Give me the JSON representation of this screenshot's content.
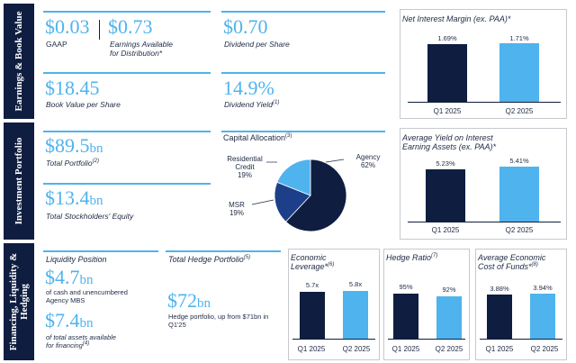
{
  "sections": {
    "earnings": "Earnings & Book Value",
    "portfolio": "Investment Portfolio",
    "financing": "Financing, Liquidity & Hedging"
  },
  "earnings": {
    "gaap_value": "$0.03",
    "gaap_label": "GAAP",
    "ead_value": "$0.73",
    "ead_label_line1": "Earnings Available",
    "ead_label_line2": "for Distribution*",
    "dividend_value": "$0.70",
    "dividend_label": "Dividend per Share",
    "bvps_value": "$18.45",
    "bvps_label": "Book Value per Share",
    "yield_value": "14.9%",
    "yield_label": "Dividend Yield",
    "yield_note": "(1)"
  },
  "nim_chart": {
    "title": "Net Interest Margin (ex. PAA)*",
    "chart_data": {
      "type": "bar",
      "categories": [
        "Q1 2025",
        "Q2 2025"
      ],
      "values": [
        1.69,
        1.71
      ],
      "labels": [
        "1.69%",
        "1.71%"
      ],
      "colors": [
        "#0f1d40",
        "#4fb3ee"
      ]
    }
  },
  "portfolio": {
    "total_value": "$89.5",
    "total_unit": "bn",
    "total_label": "Total Portfolio",
    "total_note": "(2)",
    "equity_value": "$13.4",
    "equity_unit": "bn",
    "equity_label": "Total Stockholders' Equity"
  },
  "allocation": {
    "title": "Capital Allocation",
    "note": "(3)",
    "chart_data": {
      "type": "pie",
      "slices": [
        {
          "label": "Agency",
          "value": 62,
          "pct": "62%",
          "color": "#0f1d40"
        },
        {
          "label": "MSR",
          "value": 19,
          "pct": "19%",
          "color": "#1d3f8a"
        },
        {
          "label": "Residential Credit",
          "value": 19,
          "pct": "19%",
          "color": "#4fb3ee"
        }
      ]
    },
    "agency_label": "Agency",
    "agency_pct": "62%",
    "msr_label": "MSR",
    "msr_pct": "19%",
    "resi_line1": "Residential",
    "resi_line2": "Credit",
    "resi_pct": "19%"
  },
  "yield_chart": {
    "title_line1": "Average Yield on Interest",
    "title_line2": "Earning Assets (ex. PAA)*",
    "chart_data": {
      "type": "bar",
      "categories": [
        "Q1 2025",
        "Q2 2025"
      ],
      "values": [
        5.23,
        5.41
      ],
      "labels": [
        "5.23%",
        "5.41%"
      ],
      "colors": [
        "#0f1d40",
        "#4fb3ee"
      ]
    }
  },
  "liquidity": {
    "title": "Liquidity Position",
    "unencumbered_value": "$4.7",
    "unencumbered_unit": "bn",
    "unencumbered_line1": "of cash and unencumbered",
    "unencumbered_line2": "Agency MBS",
    "total_value": "$7.4",
    "total_unit": "bn",
    "total_line1": "of total assets available",
    "total_line2": "for financing",
    "total_note": "(4)"
  },
  "hedge": {
    "title": "Total Hedge Portfolio",
    "note": "(5)",
    "value": "$72",
    "unit": "bn",
    "desc_line1": "Hedge portfolio, up from $71bn in",
    "desc_line2": "Q1'25"
  },
  "leverage_chart": {
    "title_line1": "Economic",
    "title_line2": "Leverage*",
    "note": "(6)",
    "chart_data": {
      "type": "bar",
      "categories": [
        "Q1 2025",
        "Q2 2025"
      ],
      "values": [
        5.7,
        5.8
      ],
      "labels": [
        "5.7x",
        "5.8x"
      ],
      "colors": [
        "#0f1d40",
        "#4fb3ee"
      ]
    }
  },
  "hedge_ratio_chart": {
    "title": "Hedge Ratio",
    "note": "(7)",
    "chart_data": {
      "type": "bar",
      "categories": [
        "Q1 2025",
        "Q2 2025"
      ],
      "values": [
        95,
        92
      ],
      "labels": [
        "95%",
        "92%"
      ],
      "colors": [
        "#0f1d40",
        "#4fb3ee"
      ]
    }
  },
  "funding_chart": {
    "title_line1": "Average Economic",
    "title_line2": "Cost of Funds*",
    "note": "(8)",
    "chart_data": {
      "type": "bar",
      "categories": [
        "Q1 2025",
        "Q2 2025"
      ],
      "values": [
        3.88,
        3.94
      ],
      "labels": [
        "3.88%",
        "3.94%"
      ],
      "colors": [
        "#0f1d40",
        "#4fb3ee"
      ]
    }
  }
}
